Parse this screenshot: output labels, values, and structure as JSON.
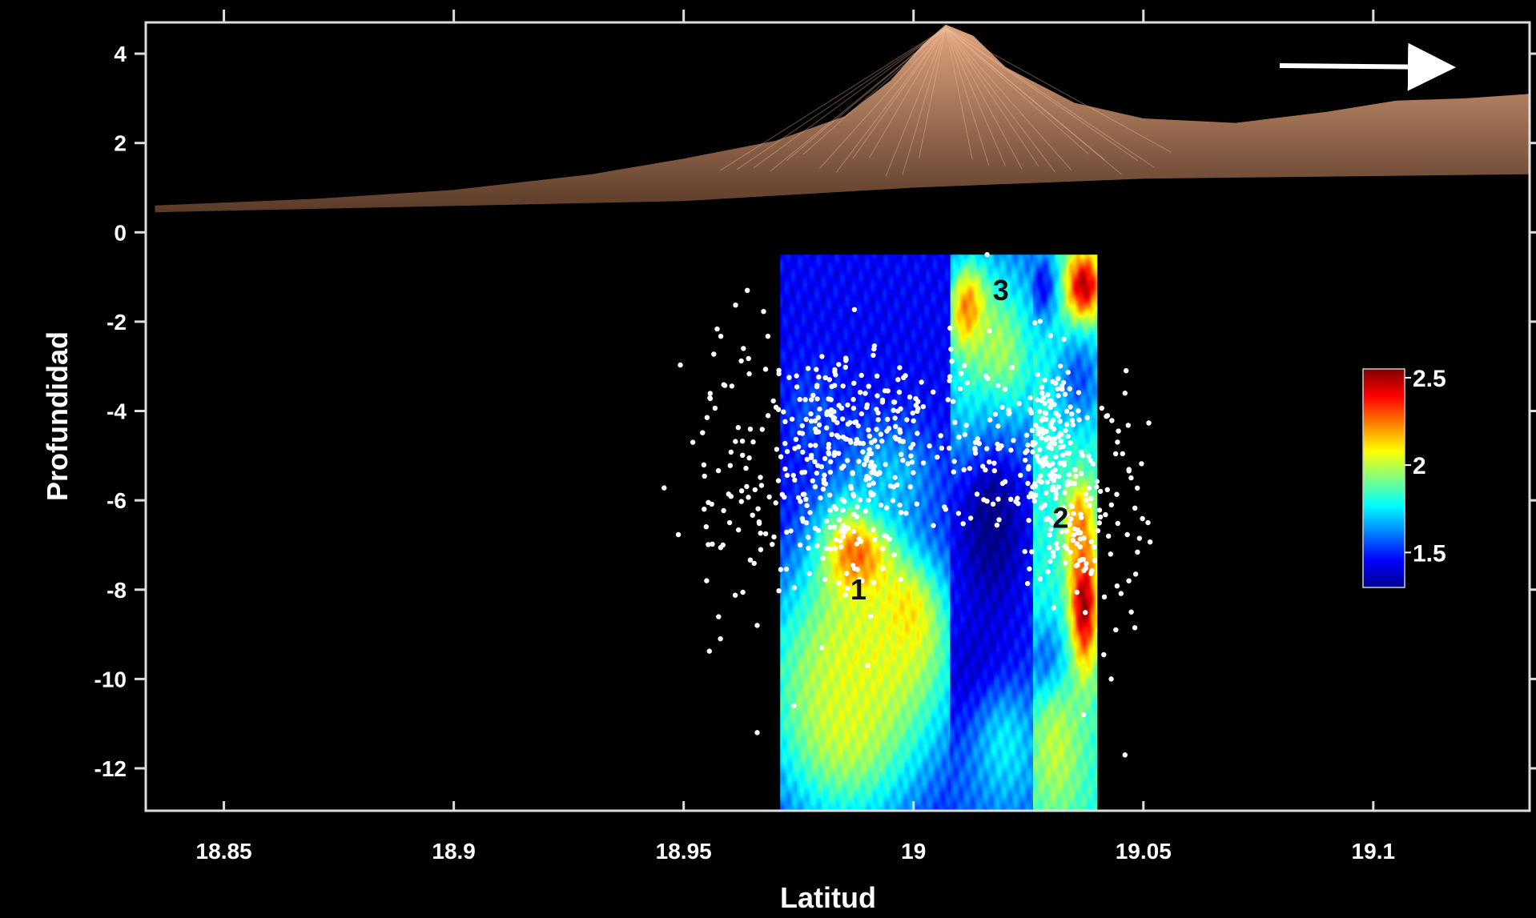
{
  "chart_data": {
    "type": "heatmap",
    "title": "",
    "xlabel": "Latitud",
    "ylabel": "Profundidad",
    "xlim": [
      18.833,
      19.134
    ],
    "ylim": [
      -12.95,
      4.7
    ],
    "x_ticks": [
      18.85,
      18.9,
      18.95,
      19,
      19.05,
      19.1
    ],
    "x_tick_labels": [
      "18.85",
      "18.9",
      "18.95",
      "19",
      "19.05",
      "19.1"
    ],
    "y_ticks": [
      4,
      2,
      0,
      -2,
      -4,
      -6,
      -8,
      -10,
      -12
    ],
    "y_tick_labels": [
      "4",
      "2",
      "0",
      "-2",
      "-4",
      "-6",
      "-8",
      "-10",
      "-12"
    ],
    "grid": false,
    "direction_arrow": "right",
    "topography": {
      "color": "#c8885e",
      "profile": [
        {
          "x": 18.835,
          "y": 0.6
        },
        {
          "x": 18.87,
          "y": 0.75
        },
        {
          "x": 18.9,
          "y": 0.95
        },
        {
          "x": 18.93,
          "y": 1.3
        },
        {
          "x": 18.95,
          "y": 1.65
        },
        {
          "x": 18.97,
          "y": 2.05
        },
        {
          "x": 18.985,
          "y": 2.6
        },
        {
          "x": 18.995,
          "y": 3.4
        },
        {
          "x": 19.002,
          "y": 4.2
        },
        {
          "x": 19.007,
          "y": 4.65
        },
        {
          "x": 19.013,
          "y": 4.4
        },
        {
          "x": 19.02,
          "y": 3.7
        },
        {
          "x": 19.035,
          "y": 2.9
        },
        {
          "x": 19.05,
          "y": 2.55
        },
        {
          "x": 19.07,
          "y": 2.45
        },
        {
          "x": 19.09,
          "y": 2.7
        },
        {
          "x": 19.105,
          "y": 2.95
        },
        {
          "x": 19.12,
          "y": 3.0
        },
        {
          "x": 19.134,
          "y": 3.1
        }
      ],
      "base_profile": [
        {
          "x": 18.835,
          "y": 0.45
        },
        {
          "x": 18.95,
          "y": 0.7
        },
        {
          "x": 19.0,
          "y": 1.0
        },
        {
          "x": 19.05,
          "y": 1.2
        },
        {
          "x": 19.134,
          "y": 1.3
        }
      ]
    },
    "tomography_panels": [
      {
        "name": "",
        "x_range": [
          18.971,
          19.008
        ],
        "y_range": [
          -12.95,
          -0.5
        ],
        "base_value": 1.45,
        "anomalies": [
          {
            "x": 18.988,
            "y": -7.3,
            "value": 2.5,
            "rx": 0.008,
            "ry": 1.3
          },
          {
            "x": 18.998,
            "y": -8.7,
            "value": 2.3,
            "rx": 0.007,
            "ry": 1.2
          },
          {
            "x": 18.985,
            "y": -11.0,
            "value": 2.0,
            "rx": 0.016,
            "ry": 2.4
          },
          {
            "x": 18.99,
            "y": -9.5,
            "value": 2.05,
            "rx": 0.02,
            "ry": 2.2
          },
          {
            "x": 18.995,
            "y": -5.5,
            "value": 1.7,
            "rx": 0.01,
            "ry": 1.2
          },
          {
            "x": 18.978,
            "y": -4.0,
            "value": 1.55,
            "rx": 0.006,
            "ry": 1.0
          }
        ]
      },
      {
        "name": "",
        "x_range": [
          19.008,
          19.026
        ],
        "y_range": [
          -12.95,
          -0.5
        ],
        "base_value": 1.55,
        "anomalies": [
          {
            "x": 19.012,
            "y": -1.8,
            "value": 2.4,
            "rx": 0.004,
            "ry": 1.0
          },
          {
            "x": 19.018,
            "y": -3.0,
            "value": 2.05,
            "rx": 0.009,
            "ry": 2.0
          },
          {
            "x": 19.015,
            "y": -4.5,
            "value": 1.95,
            "rx": 0.006,
            "ry": 1.2
          },
          {
            "x": 19.017,
            "y": -6.5,
            "value": 1.3,
            "rx": 0.009,
            "ry": 2.5
          },
          {
            "x": 19.015,
            "y": -10.0,
            "value": 1.35,
            "rx": 0.01,
            "ry": 1.5
          },
          {
            "x": 19.02,
            "y": -11.5,
            "value": 1.75,
            "rx": 0.008,
            "ry": 1.5
          }
        ]
      },
      {
        "name": "",
        "x_range": [
          19.026,
          19.04
        ],
        "y_range": [
          -12.95,
          -0.5
        ],
        "base_value": 1.8,
        "anomalies": [
          {
            "x": 19.037,
            "y": -1.2,
            "value": 2.5,
            "rx": 0.004,
            "ry": 0.8
          },
          {
            "x": 19.028,
            "y": -1.2,
            "value": 1.45,
            "rx": 0.003,
            "ry": 0.8
          },
          {
            "x": 19.036,
            "y": -3.3,
            "value": 1.55,
            "rx": 0.005,
            "ry": 1.0
          },
          {
            "x": 19.037,
            "y": -8.3,
            "value": 2.55,
            "rx": 0.003,
            "ry": 1.5
          },
          {
            "x": 19.036,
            "y": -6.6,
            "value": 2.25,
            "rx": 0.003,
            "ry": 1.0
          },
          {
            "x": 19.029,
            "y": -9.8,
            "value": 1.45,
            "rx": 0.004,
            "ry": 1.0
          },
          {
            "x": 19.031,
            "y": -11.5,
            "value": 2.0,
            "rx": 0.006,
            "ry": 1.7
          }
        ]
      }
    ],
    "seismicity_clusters": [
      {
        "center": [
          18.985,
          -5.0
        ],
        "spread": [
          0.01,
          1.2
        ],
        "count": 260,
        "seed": 11
      },
      {
        "center": [
          18.962,
          -5.3
        ],
        "spread": [
          0.006,
          1.6
        ],
        "count": 70,
        "seed": 23
      },
      {
        "center": [
          18.993,
          -4.0
        ],
        "spread": [
          0.007,
          0.6
        ],
        "count": 60,
        "seed": 37
      },
      {
        "center": [
          18.985,
          -7.2
        ],
        "spread": [
          0.005,
          0.6
        ],
        "count": 30,
        "seed": 41
      },
      {
        "center": [
          19.03,
          -5.0
        ],
        "spread": [
          0.004,
          1.2
        ],
        "count": 200,
        "seed": 53
      },
      {
        "center": [
          19.035,
          -6.6
        ],
        "spread": [
          0.004,
          0.8
        ],
        "count": 50,
        "seed": 61
      },
      {
        "center": [
          19.015,
          -4.5
        ],
        "spread": [
          0.005,
          1.0
        ],
        "count": 45,
        "seed": 71
      },
      {
        "center": [
          19.045,
          -6.0
        ],
        "spread": [
          0.003,
          1.4
        ],
        "count": 40,
        "seed": 79
      },
      {
        "center": [
          19.02,
          -6.0
        ],
        "spread": [
          0.004,
          0.5
        ],
        "count": 15,
        "seed": 83
      }
    ],
    "seismicity_outliers": [
      {
        "x": 18.952,
        "y": -4.7
      },
      {
        "x": 18.96,
        "y": -6.5
      },
      {
        "x": 18.955,
        "y": -7.8
      },
      {
        "x": 18.958,
        "y": -9.1
      },
      {
        "x": 18.966,
        "y": -8.8
      },
      {
        "x": 18.966,
        "y": -11.2
      },
      {
        "x": 18.974,
        "y": -10.6
      },
      {
        "x": 18.98,
        "y": -9.3
      },
      {
        "x": 18.99,
        "y": -9.7
      },
      {
        "x": 19.044,
        "y": -8.9
      },
      {
        "x": 19.043,
        "y": -10.0
      },
      {
        "x": 19.046,
        "y": -11.7
      },
      {
        "x": 19.046,
        "y": -3.6
      },
      {
        "x": 19.051,
        "y": -6.5
      },
      {
        "x": 19.037,
        "y": -10.8
      },
      {
        "x": 19.016,
        "y": -0.5
      },
      {
        "x": 18.963,
        "y": -2.6
      }
    ],
    "annotations": [
      {
        "text": "1",
        "x": 18.988,
        "y": -8.0
      },
      {
        "text": "2",
        "x": 19.032,
        "y": -6.4
      },
      {
        "text": "3",
        "x": 19.019,
        "y": -1.3
      }
    ],
    "colorbar": {
      "min": 1.3,
      "max": 2.55,
      "ticks": [
        2.5,
        2,
        1.5
      ],
      "tick_labels": [
        "2.5",
        "2",
        "1.5"
      ],
      "colormap": "jet",
      "placement": "right"
    }
  }
}
